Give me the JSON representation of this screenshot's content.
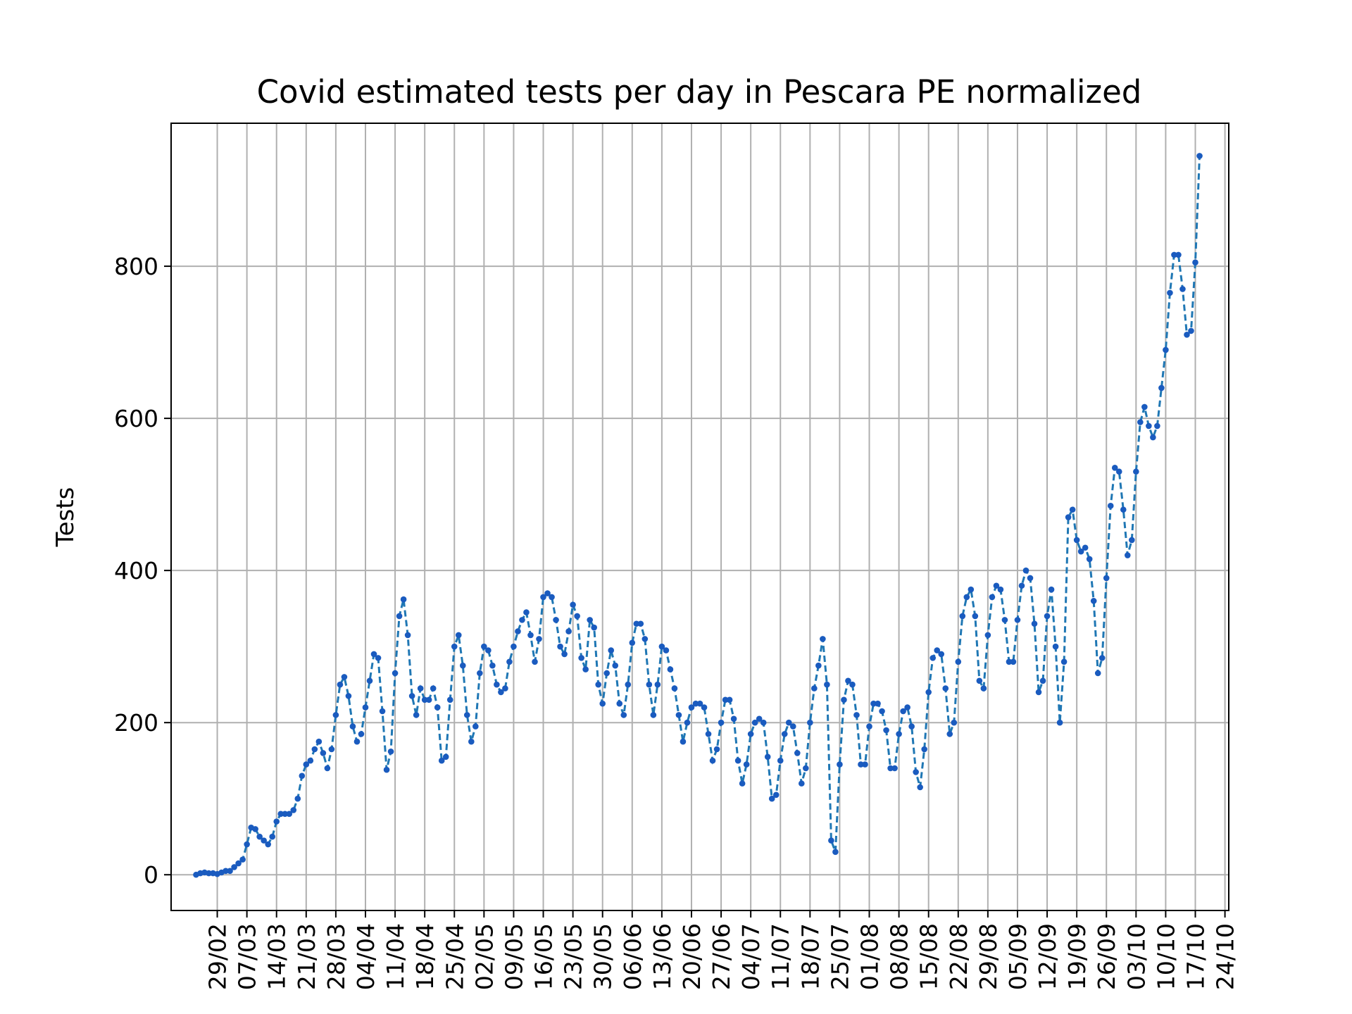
{
  "chart_data": {
    "type": "line",
    "title": "Covid estimated tests per day in Pescara PE normalized",
    "ylabel": "Tests",
    "xlabel": "",
    "ylim": [
      -47,
      988
    ],
    "yticks": [
      0,
      200,
      400,
      600,
      800
    ],
    "grid": true,
    "line_style": "dashed",
    "line_color": "#1f77b4",
    "marker_color": "#1a5bbf",
    "x_start": "24/02",
    "xticks": [
      "29/02",
      "07/03",
      "14/03",
      "21/03",
      "28/03",
      "04/04",
      "11/04",
      "18/04",
      "25/04",
      "02/05",
      "09/05",
      "16/05",
      "23/05",
      "30/05",
      "06/06",
      "13/06",
      "20/06",
      "27/06",
      "04/07",
      "11/07",
      "18/07",
      "25/07",
      "01/08",
      "08/08",
      "15/08",
      "22/08",
      "29/08",
      "05/09",
      "12/09",
      "19/09",
      "26/09",
      "03/10",
      "10/10",
      "17/10",
      "24/10"
    ],
    "values": [
      0,
      2,
      3,
      2,
      2,
      1,
      3,
      5,
      5,
      10,
      15,
      20,
      40,
      62,
      60,
      50,
      45,
      40,
      50,
      70,
      80,
      80,
      80,
      85,
      100,
      130,
      145,
      150,
      165,
      175,
      160,
      140,
      165,
      210,
      250,
      260,
      235,
      195,
      175,
      185,
      220,
      255,
      290,
      285,
      215,
      138,
      162,
      265,
      340,
      362,
      315,
      235,
      210,
      245,
      230,
      230,
      245,
      220,
      150,
      155,
      230,
      300,
      315,
      275,
      210,
      175,
      195,
      265,
      300,
      295,
      275,
      250,
      240,
      245,
      280,
      300,
      320,
      335,
      345,
      315,
      280,
      310,
      365,
      370,
      365,
      335,
      300,
      290,
      320,
      355,
      340,
      285,
      270,
      335,
      325,
      250,
      225,
      265,
      295,
      275,
      225,
      210,
      250,
      305,
      330,
      330,
      310,
      250,
      210,
      250,
      300,
      295,
      270,
      245,
      210,
      175,
      200,
      220,
      225,
      225,
      220,
      185,
      150,
      165,
      200,
      230,
      230,
      205,
      150,
      120,
      145,
      185,
      200,
      205,
      200,
      155,
      100,
      105,
      150,
      185,
      200,
      195,
      160,
      120,
      140,
      200,
      245,
      275,
      310,
      250,
      45,
      30,
      145,
      230,
      255,
      250,
      210,
      145,
      145,
      195,
      225,
      225,
      215,
      190,
      140,
      140,
      185,
      215,
      220,
      195,
      135,
      115,
      165,
      240,
      285,
      295,
      290,
      245,
      185,
      200,
      280,
      340,
      365,
      375,
      340,
      255,
      245,
      315,
      365,
      380,
      375,
      335,
      280,
      280,
      335,
      380,
      400,
      390,
      330,
      240,
      255,
      340,
      375,
      300,
      200,
      280,
      470,
      480,
      440,
      425,
      430,
      415,
      360,
      265,
      285,
      390,
      485,
      535,
      530,
      480,
      420,
      440,
      530,
      595,
      615,
      590,
      575,
      590,
      640,
      690,
      765,
      815,
      815,
      770,
      710,
      715,
      805,
      945
    ]
  }
}
